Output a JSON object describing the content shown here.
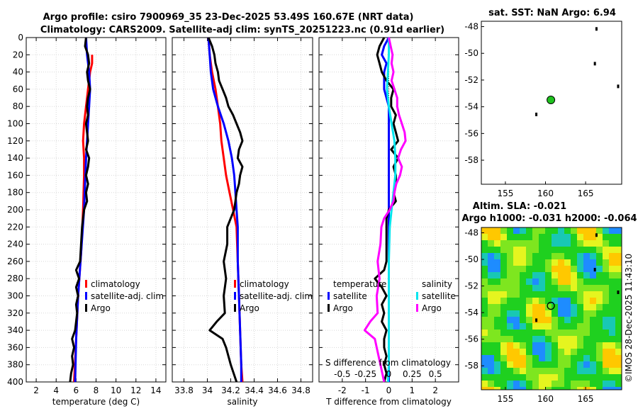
{
  "figure": {
    "title_line1": "Argo profile: csiro 7900969_35 23-Dec-2025 53.49S 160.67E (NRT data)",
    "title_line2": "Climatology: CARS2009. Satellite-adj clim: synTS_20251223.nc (0.91d earlier)",
    "sst_title": "sat. SST: NaN Argo: 6.94",
    "sla_title_line1": "Altim. SLA: -0.021",
    "sla_title_line2": "Argo h1000: -0.031 h2000: -0.064",
    "copyright": "©IMOS 28-Dec-2025 11:43:10"
  },
  "colors": {
    "climatology": "#ff0000",
    "satellite": "#0000ff",
    "argo": "#000000",
    "satellite_salinity": "#00e5ee",
    "argo_salinity": "#ff00ff",
    "land": "#000000",
    "argo_marker": "#1fc21f"
  },
  "chart_data": [
    {
      "id": "temperature",
      "type": "line",
      "xlabel": "temperature (deg C)",
      "ylabel": "",
      "xlim": [
        1,
        15
      ],
      "ylim": [
        400,
        0
      ],
      "xticks": [
        2,
        4,
        6,
        8,
        10,
        12,
        14
      ],
      "xtick_labels": [
        "2",
        "4",
        "6",
        "8",
        "10",
        "12",
        "14"
      ],
      "yticks": [
        0,
        20,
        40,
        60,
        80,
        100,
        120,
        140,
        160,
        180,
        200,
        220,
        240,
        260,
        280,
        300,
        320,
        340,
        360,
        380,
        400
      ],
      "ytick_labels": [
        "0",
        "20",
        "40",
        "60",
        "80",
        "100",
        "120",
        "140",
        "160",
        "180",
        "200",
        "220",
        "240",
        "260",
        "280",
        "300",
        "320",
        "340",
        "360",
        "380",
        "400"
      ],
      "legend": [
        "climatology",
        "satellite-adj. clim",
        "Argo"
      ],
      "series": [
        {
          "name": "climatology",
          "color": "#ff0000",
          "depth": [
            20,
            30,
            40,
            60,
            80,
            100,
            120,
            140,
            160,
            200,
            250,
            300,
            350,
            400
          ],
          "values": [
            7.6,
            7.6,
            7.4,
            7.2,
            7.0,
            6.8,
            6.7,
            6.8,
            6.8,
            6.7,
            6.5,
            6.2,
            6.0,
            5.8
          ]
        },
        {
          "name": "satellite-adj. clim",
          "color": "#0000ff",
          "depth": [
            0,
            20,
            40,
            60,
            80,
            100,
            140,
            200,
            250,
            300,
            350,
            400
          ],
          "values": [
            7.0,
            7.1,
            7.3,
            7.4,
            7.3,
            7.2,
            7.0,
            6.8,
            6.5,
            6.2,
            6.0,
            5.9
          ]
        },
        {
          "name": "Argo",
          "color": "#000000",
          "depth": [
            0,
            10,
            20,
            30,
            40,
            50,
            60,
            70,
            80,
            90,
            100,
            110,
            120,
            130,
            140,
            150,
            160,
            170,
            180,
            190,
            200,
            210,
            220,
            240,
            260,
            270,
            280,
            290,
            300,
            310,
            320,
            330,
            340,
            350,
            360,
            370,
            380,
            390,
            400
          ],
          "values": [
            7.0,
            6.9,
            7.2,
            7.3,
            7.1,
            7.2,
            7.4,
            7.2,
            7.1,
            7.2,
            7.0,
            7.1,
            7.2,
            7.0,
            7.3,
            7.2,
            7.0,
            7.2,
            7.0,
            7.1,
            6.8,
            6.7,
            6.6,
            6.5,
            6.4,
            6.0,
            6.3,
            6.0,
            6.2,
            6.0,
            6.1,
            6.0,
            5.9,
            5.6,
            5.8,
            5.6,
            5.7,
            5.5,
            5.4
          ]
        }
      ]
    },
    {
      "id": "salinity",
      "type": "line",
      "xlabel": "salinity",
      "xlim": [
        33.7,
        34.9
      ],
      "ylim": [
        400,
        0
      ],
      "xticks": [
        33.8,
        34.0,
        34.2,
        34.4,
        34.6,
        34.8
      ],
      "xtick_labels": [
        "33.8",
        "34",
        "34.2",
        "34.4",
        "34.6",
        "34.8"
      ],
      "legend": [
        "climatology",
        "satellite-adj. clim",
        "Argo"
      ],
      "series": [
        {
          "name": "climatology",
          "color": "#ff0000",
          "depth": [
            0,
            20,
            40,
            60,
            80,
            100,
            120,
            140,
            160,
            180,
            200,
            220,
            260,
            300,
            340,
            380,
            400
          ],
          "values": [
            34.01,
            34.02,
            34.04,
            34.07,
            34.09,
            34.11,
            34.12,
            34.14,
            34.16,
            34.19,
            34.22,
            34.25,
            34.26,
            34.27,
            34.28,
            34.29,
            34.3
          ]
        },
        {
          "name": "satellite-adj. clim",
          "color": "#0000ff",
          "depth": [
            0,
            20,
            40,
            60,
            80,
            100,
            120,
            140,
            160,
            180,
            200,
            220,
            260,
            300,
            340,
            380,
            400
          ],
          "values": [
            34.01,
            34.02,
            34.03,
            34.05,
            34.09,
            34.14,
            34.18,
            34.21,
            34.23,
            34.24,
            34.25,
            34.26,
            34.26,
            34.27,
            34.28,
            34.29,
            34.29
          ]
        },
        {
          "name": "Argo",
          "color": "#000000",
          "depth": [
            0,
            10,
            20,
            30,
            40,
            50,
            60,
            70,
            80,
            90,
            100,
            110,
            120,
            130,
            140,
            150,
            160,
            170,
            180,
            190,
            200,
            210,
            220,
            240,
            260,
            280,
            300,
            320,
            330,
            340,
            350,
            360,
            380,
            400
          ],
          "values": [
            34.01,
            34.04,
            34.06,
            34.07,
            34.09,
            34.1,
            34.13,
            34.16,
            34.18,
            34.22,
            34.25,
            34.28,
            34.3,
            34.27,
            34.26,
            34.3,
            34.28,
            34.27,
            34.25,
            34.24,
            34.23,
            34.2,
            34.17,
            34.17,
            34.14,
            34.16,
            34.14,
            34.15,
            34.08,
            34.02,
            34.13,
            34.16,
            34.2,
            34.25
          ]
        }
      ]
    },
    {
      "id": "difference",
      "type": "line",
      "xlabel": "T difference from climatology",
      "top_axis_label": "S difference from climatology",
      "xlim": [
        -3,
        3
      ],
      "top_xlim": [
        -0.75,
        0.75
      ],
      "ylim": [
        400,
        0
      ],
      "xticks": [
        -2,
        -1,
        0,
        1,
        2
      ],
      "xtick_labels": [
        "-2",
        "-1",
        "0",
        "1",
        "2"
      ],
      "top_xticks": [
        -0.5,
        -0.25,
        0,
        0.25,
        0.5
      ],
      "top_xtick_labels": [
        "-0.5",
        "-0.25",
        "0",
        "0.25",
        "0.5"
      ],
      "legend_left_title": "temperature",
      "legend_right_title": "salinity",
      "legend_left": [
        "satellite",
        "Argo"
      ],
      "legend_right": [
        "satellite",
        "Argo"
      ],
      "series": [
        {
          "name": "temperature satellite",
          "color": "#0000ff",
          "axis": "T",
          "depth": [
            0,
            10,
            20,
            30,
            40,
            60,
            80,
            100,
            150,
            200,
            250,
            300,
            350,
            400
          ],
          "values": [
            0.0,
            -0.2,
            -0.3,
            -0.1,
            -0.2,
            -0.2,
            0.0,
            0.0,
            0.0,
            0.0,
            0.0,
            0.0,
            0.0,
            0.0
          ]
        },
        {
          "name": "temperature Argo",
          "color": "#000000",
          "axis": "T",
          "depth": [
            0,
            10,
            20,
            30,
            40,
            50,
            60,
            70,
            80,
            90,
            100,
            110,
            120,
            130,
            140,
            150,
            160,
            170,
            180,
            190,
            200,
            210,
            220,
            240,
            260,
            270,
            280,
            290,
            300,
            310,
            320,
            330,
            340,
            350,
            360,
            370,
            380,
            390,
            400
          ],
          "values": [
            -0.2,
            -0.4,
            -0.5,
            -0.4,
            -0.3,
            -0.1,
            0.2,
            0.1,
            0.1,
            0.3,
            0.2,
            0.3,
            0.4,
            0.1,
            0.4,
            0.2,
            0.3,
            0.3,
            0.2,
            0.3,
            0.0,
            -0.1,
            -0.1,
            -0.1,
            -0.1,
            -0.2,
            -0.6,
            -0.3,
            -0.1,
            -0.3,
            -0.2,
            -0.3,
            -0.1,
            -0.2,
            -0.2,
            -0.1,
            -0.2,
            -0.1,
            -0.2
          ]
        },
        {
          "name": "salinity satellite",
          "color": "#00e5ee",
          "axis": "S",
          "depth": [
            0,
            20,
            40,
            60,
            80,
            100,
            120,
            140,
            160,
            180,
            200,
            220,
            260,
            300,
            340,
            380,
            400
          ],
          "values": [
            0.0,
            0.0,
            -0.01,
            -0.02,
            0.0,
            0.03,
            0.06,
            0.07,
            0.07,
            0.05,
            0.03,
            0.01,
            0.0,
            0.0,
            0.0,
            0.0,
            -0.01
          ]
        },
        {
          "name": "salinity Argo",
          "color": "#ff00ff",
          "axis": "S",
          "depth": [
            0,
            10,
            20,
            30,
            40,
            50,
            60,
            70,
            80,
            90,
            100,
            110,
            120,
            130,
            140,
            150,
            160,
            170,
            180,
            190,
            200,
            210,
            220,
            240,
            260,
            280,
            300,
            320,
            330,
            340,
            350,
            360,
            380,
            400
          ],
          "values": [
            0.0,
            0.02,
            0.04,
            0.03,
            0.05,
            0.03,
            0.06,
            0.09,
            0.09,
            0.11,
            0.14,
            0.17,
            0.18,
            0.13,
            0.1,
            0.14,
            0.12,
            0.08,
            0.06,
            0.05,
            0.01,
            -0.05,
            -0.08,
            -0.09,
            -0.12,
            -0.1,
            -0.13,
            -0.12,
            -0.2,
            -0.26,
            -0.15,
            -0.13,
            -0.09,
            -0.05
          ]
        }
      ]
    },
    {
      "id": "sst_map",
      "type": "scatter",
      "title": "sat. SST: NaN Argo: 6.94",
      "xlim": [
        152,
        169.5
      ],
      "ylim": [
        -59.8,
        -47.6
      ],
      "xticks": [
        155,
        160,
        165
      ],
      "xtick_labels": [
        "155",
        "160",
        "165"
      ],
      "yticks": [
        -48,
        -50,
        -52,
        -54,
        -56,
        -58
      ],
      "ytick_labels": [
        "-48",
        "-50",
        "-52",
        "-54",
        "-56",
        "-58"
      ],
      "argo_position": {
        "lon": 160.67,
        "lat": -53.49
      }
    },
    {
      "id": "sla_map",
      "type": "heatmap",
      "title": "Altim. SLA: -0.021",
      "subtitle": "Argo h1000: -0.031 h2000: -0.064",
      "xlim": [
        152,
        169.5
      ],
      "ylim": [
        -59.8,
        -47.6
      ],
      "xticks": [
        155,
        160,
        165
      ],
      "xtick_labels": [
        "155",
        "160",
        "165"
      ],
      "yticks": [
        -48,
        -50,
        -52,
        -54,
        -56,
        -58
      ],
      "ytick_labels": [
        "-48",
        "-50",
        "-52",
        "-54",
        "-56",
        "-58"
      ],
      "argo_position": {
        "lon": 160.67,
        "lat": -53.49
      }
    }
  ]
}
